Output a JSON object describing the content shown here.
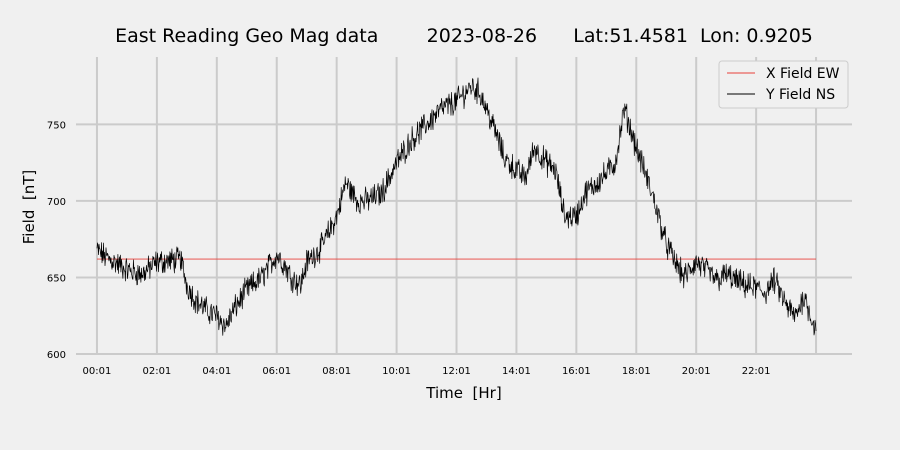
{
  "chart_data": {
    "type": "line",
    "title": "East Reading Geo Mag data        2023-08-26      Lat:51.4581  Lon: 0.9205",
    "xlabel": "Time  [Hr]",
    "ylabel": "Field  [nT]",
    "xlim": [
      -0.7,
      25.2
    ],
    "ylim": [
      600,
      794
    ],
    "x_ticks": [
      0,
      2,
      4,
      6,
      8,
      10,
      12,
      14,
      16,
      18,
      20,
      22,
      24
    ],
    "x_tick_labels": [
      "00:01",
      "02:01",
      "04:01",
      "06:01",
      "08:01",
      "10:01",
      "12:01",
      "14:01",
      "16:01",
      "18:01",
      "20:01",
      "22:01",
      ""
    ],
    "y_ticks": [
      600,
      650,
      700,
      750
    ],
    "y_tick_labels": [
      "600",
      "650",
      "700",
      "750"
    ],
    "grid": true,
    "legend_position": "top-right",
    "background": "#f0f0f0",
    "grid_color": "#cbcbcb",
    "series": [
      {
        "name": "X Field EW",
        "color": "#e8403a",
        "x": [
          0,
          24
        ],
        "values": [
          662,
          662
        ]
      },
      {
        "name": "Y Field NS",
        "color": "#000000",
        "x": [
          0,
          0.3,
          0.6,
          1.0,
          1.5,
          2.0,
          2.5,
          2.8,
          3.0,
          3.3,
          3.7,
          4.0,
          4.3,
          4.6,
          5.0,
          5.5,
          6.0,
          6.2,
          6.5,
          6.8,
          7.0,
          7.5,
          8.0,
          8.3,
          8.7,
          9.0,
          9.5,
          10.0,
          10.5,
          11.0,
          11.5,
          12.0,
          12.5,
          12.8,
          13.0,
          13.3,
          13.6,
          14.0,
          14.3,
          14.6,
          15.0,
          15.3,
          15.6,
          16.0,
          16.3,
          16.7,
          17.0,
          17.3,
          17.6,
          18.0,
          18.3,
          18.6,
          19.0,
          19.3,
          19.6,
          20.0,
          20.3,
          20.7,
          21.0,
          21.3,
          21.6,
          22.0,
          22.3,
          22.6,
          23.0,
          23.3,
          23.6,
          24.0
        ],
        "values": [
          668,
          663,
          660,
          655,
          652,
          660,
          661,
          662,
          645,
          635,
          628,
          625,
          618,
          630,
          642,
          650,
          665,
          660,
          650,
          645,
          660,
          670,
          690,
          712,
          700,
          700,
          705,
          725,
          740,
          750,
          760,
          765,
          775,
          770,
          760,
          745,
          728,
          720,
          715,
          735,
          725,
          720,
          690,
          690,
          705,
          712,
          718,
          725,
          760,
          735,
          718,
          700,
          672,
          660,
          650,
          660,
          655,
          648,
          652,
          648,
          645,
          643,
          640,
          648,
          632,
          624,
          638,
          615
        ]
      }
    ]
  }
}
